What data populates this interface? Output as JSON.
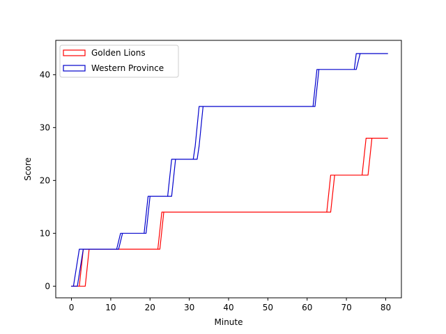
{
  "chart_data": {
    "type": "area",
    "xlabel": "Minute",
    "ylabel": "Score",
    "xlim": [
      -4,
      84
    ],
    "ylim": [
      -2.2,
      46.5
    ],
    "xticks": [
      0,
      10,
      20,
      30,
      40,
      50,
      60,
      70,
      80
    ],
    "yticks": [
      0,
      10,
      20,
      30,
      40
    ],
    "legend_position": "upper-left",
    "series": [
      {
        "name": "Golden Lions",
        "color": "#ff0000",
        "upper": [
          [
            0,
            0
          ],
          [
            2,
            0
          ],
          [
            3,
            7
          ],
          [
            22,
            7
          ],
          [
            23,
            14
          ],
          [
            65,
            14
          ],
          [
            66,
            21
          ],
          [
            74,
            21
          ],
          [
            75,
            28
          ],
          [
            80.5,
            28
          ]
        ],
        "lower": [
          [
            0,
            0
          ],
          [
            3.5,
            0
          ],
          [
            4.5,
            7
          ],
          [
            22.5,
            7
          ],
          [
            23.5,
            14
          ],
          [
            66,
            14
          ],
          [
            67,
            21
          ],
          [
            75.5,
            21
          ],
          [
            76.5,
            28
          ],
          [
            80.5,
            28
          ]
        ]
      },
      {
        "name": "Western Province",
        "color": "#0000cc",
        "upper": [
          [
            0,
            0
          ],
          [
            0.5,
            0
          ],
          [
            2,
            7
          ],
          [
            11.5,
            7
          ],
          [
            12.5,
            10
          ],
          [
            18.5,
            10
          ],
          [
            19.5,
            17
          ],
          [
            24.5,
            17
          ],
          [
            25.5,
            24
          ],
          [
            31,
            24
          ],
          [
            31.5,
            26.5
          ],
          [
            32.5,
            34
          ],
          [
            61.5,
            34
          ],
          [
            62.5,
            41
          ],
          [
            72,
            41
          ],
          [
            72.5,
            44
          ],
          [
            80.5,
            44
          ]
        ],
        "lower": [
          [
            0,
            0
          ],
          [
            1.5,
            0
          ],
          [
            3,
            7
          ],
          [
            12,
            7
          ],
          [
            13,
            10
          ],
          [
            19,
            10
          ],
          [
            20,
            17
          ],
          [
            25.5,
            17
          ],
          [
            26.5,
            24
          ],
          [
            32,
            24
          ],
          [
            32.5,
            26.5
          ],
          [
            33.5,
            34
          ],
          [
            62,
            34
          ],
          [
            63,
            41
          ],
          [
            72.5,
            41
          ],
          [
            73.5,
            44
          ],
          [
            80.5,
            44
          ]
        ]
      }
    ]
  }
}
